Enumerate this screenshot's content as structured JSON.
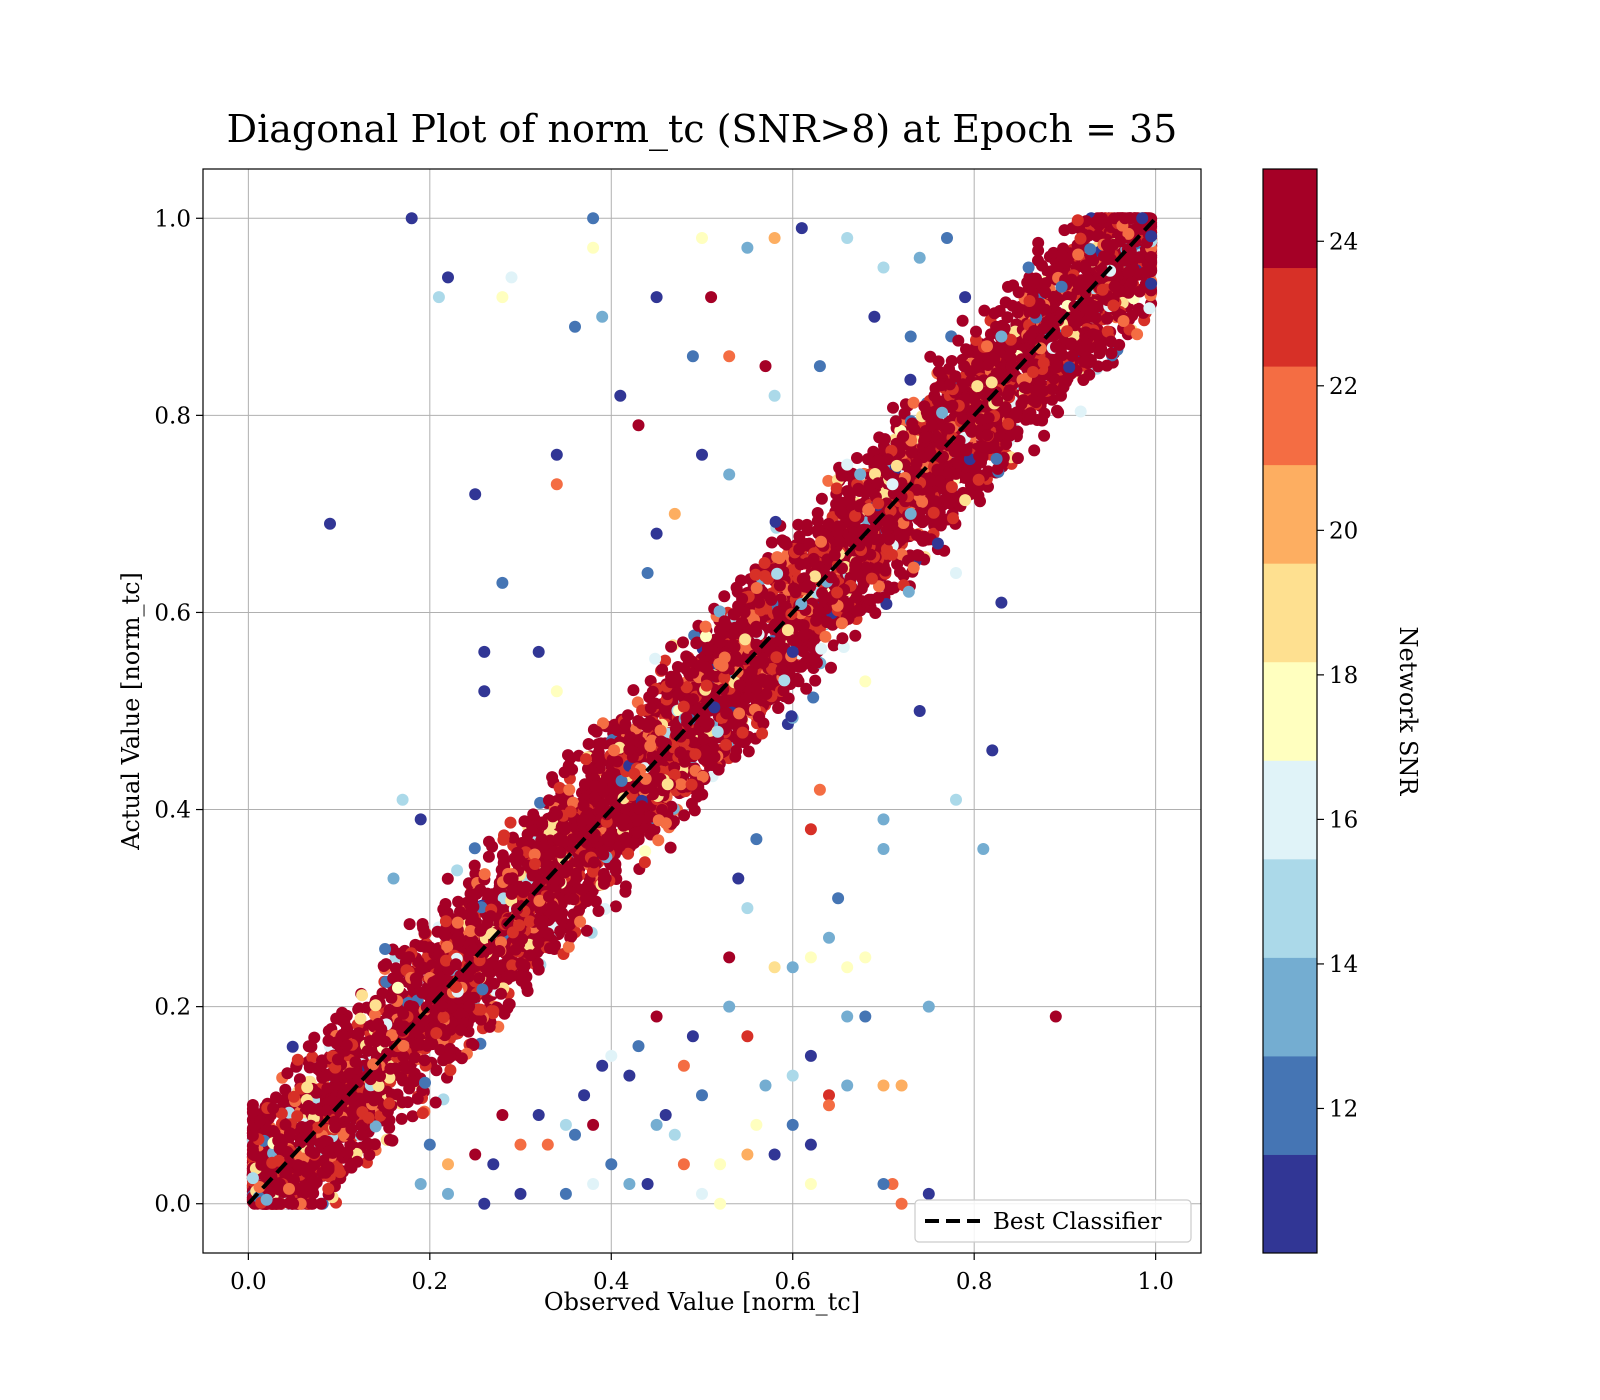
{
  "chart_data": {
    "type": "scatter",
    "title": "Diagonal Plot of norm_tc (SNR>8) at Epoch = 35",
    "xlabel": "Observed Value [norm_tc]",
    "ylabel": "Actual Value [norm_tc]",
    "xlim": [
      -0.05,
      1.05
    ],
    "ylim": [
      -0.05,
      1.05
    ],
    "xticks": [
      "0.0",
      "0.2",
      "0.4",
      "0.6",
      "0.8",
      "1.0"
    ],
    "yticks": [
      "0.0",
      "0.2",
      "0.4",
      "0.6",
      "0.8",
      "1.0"
    ],
    "grid": true,
    "legend": {
      "position": "lower-right",
      "entries": [
        "Best Classifier"
      ]
    },
    "reference_line": {
      "name": "Best Classifier",
      "style": "dashed",
      "color": "#000000",
      "x": [
        0,
        1
      ],
      "y": [
        0,
        1
      ]
    },
    "colorbar": {
      "label": "Network SNR",
      "range": [
        10,
        25
      ],
      "ticks": [
        "12",
        "14",
        "16",
        "18",
        "20",
        "22",
        "24"
      ],
      "colors": [
        "#313695",
        "#4575b4",
        "#74add1",
        "#abd9e9",
        "#e0f3f8",
        "#ffffbf",
        "#fee090",
        "#fdae61",
        "#f46d43",
        "#d73027",
        "#a50026"
      ]
    },
    "series": [
      {
        "description": "dense diagonal band of high-SNR points",
        "band_center": "y = x",
        "band_halfwidth": 0.12,
        "dominant_color": "#a50026"
      },
      {
        "description": "scattered outliers, mostly low-SNR",
        "points": [
          [
            0.18,
            1.0,
            10
          ],
          [
            0.22,
            0.94,
            10
          ],
          [
            0.21,
            0.92,
            15
          ],
          [
            0.29,
            0.94,
            16
          ],
          [
            0.28,
            0.92,
            18
          ],
          [
            0.38,
            1.0,
            12
          ],
          [
            0.38,
            0.97,
            18
          ],
          [
            0.36,
            0.89,
            12
          ],
          [
            0.39,
            0.9,
            14
          ],
          [
            0.09,
            0.69,
            10
          ],
          [
            0.25,
            0.72,
            10
          ],
          [
            0.34,
            0.76,
            10
          ],
          [
            0.34,
            0.73,
            22
          ],
          [
            0.41,
            0.82,
            10
          ],
          [
            0.43,
            0.79,
            24
          ],
          [
            0.28,
            0.63,
            12
          ],
          [
            0.26,
            0.56,
            10
          ],
          [
            0.26,
            0.52,
            10
          ],
          [
            0.32,
            0.56,
            10
          ],
          [
            0.34,
            0.52,
            18
          ],
          [
            0.19,
            0.39,
            10
          ],
          [
            0.17,
            0.41,
            15
          ],
          [
            0.16,
            0.33,
            14
          ],
          [
            0.45,
            0.92,
            11
          ],
          [
            0.5,
            0.98,
            18
          ],
          [
            0.51,
            0.92,
            24
          ],
          [
            0.55,
            0.97,
            14
          ],
          [
            0.58,
            0.98,
            20
          ],
          [
            0.61,
            0.99,
            10
          ],
          [
            0.66,
            0.98,
            15
          ],
          [
            0.49,
            0.86,
            12
          ],
          [
            0.53,
            0.86,
            22
          ],
          [
            0.57,
            0.85,
            24
          ],
          [
            0.58,
            0.82,
            15
          ],
          [
            0.63,
            0.85,
            12
          ],
          [
            0.66,
            0.75,
            16
          ],
          [
            0.7,
            0.95,
            15
          ],
          [
            0.74,
            0.96,
            13
          ],
          [
            0.69,
            0.9,
            11
          ],
          [
            0.73,
            0.88,
            12
          ],
          [
            0.5,
            0.76,
            10
          ],
          [
            0.53,
            0.74,
            13
          ],
          [
            0.47,
            0.7,
            20
          ],
          [
            0.45,
            0.68,
            10
          ],
          [
            0.44,
            0.64,
            12
          ],
          [
            0.83,
            0.61,
            10
          ],
          [
            0.78,
            0.64,
            16
          ],
          [
            0.74,
            0.5,
            10
          ],
          [
            0.82,
            0.46,
            10
          ],
          [
            0.78,
            0.41,
            15
          ],
          [
            0.81,
            0.36,
            14
          ],
          [
            0.7,
            0.39,
            14
          ],
          [
            0.7,
            0.36,
            14
          ],
          [
            0.63,
            0.42,
            21
          ],
          [
            0.62,
            0.38,
            23
          ],
          [
            0.56,
            0.37,
            12
          ],
          [
            0.54,
            0.33,
            11
          ],
          [
            0.55,
            0.3,
            15
          ],
          [
            0.65,
            0.31,
            12
          ],
          [
            0.64,
            0.27,
            13
          ],
          [
            0.53,
            0.25,
            24
          ],
          [
            0.58,
            0.24,
            19
          ],
          [
            0.6,
            0.24,
            14
          ],
          [
            0.62,
            0.25,
            17
          ],
          [
            0.66,
            0.24,
            17
          ],
          [
            0.68,
            0.25,
            17
          ],
          [
            0.75,
            0.2,
            14
          ],
          [
            0.89,
            0.19,
            24
          ],
          [
            0.66,
            0.19,
            14
          ],
          [
            0.68,
            0.19,
            12
          ],
          [
            0.45,
            0.19,
            24
          ],
          [
            0.49,
            0.17,
            10
          ],
          [
            0.55,
            0.17,
            23
          ],
          [
            0.53,
            0.2,
            13
          ],
          [
            0.62,
            0.15,
            10
          ],
          [
            0.6,
            0.13,
            15
          ],
          [
            0.57,
            0.12,
            14
          ],
          [
            0.64,
            0.11,
            23
          ],
          [
            0.64,
            0.1,
            22
          ],
          [
            0.7,
            0.12,
            20
          ],
          [
            0.72,
            0.12,
            20
          ],
          [
            0.48,
            0.14,
            21
          ],
          [
            0.5,
            0.11,
            12
          ],
          [
            0.46,
            0.09,
            10
          ],
          [
            0.42,
            0.13,
            10
          ],
          [
            0.39,
            0.14,
            11
          ],
          [
            0.37,
            0.11,
            10
          ],
          [
            0.38,
            0.08,
            24
          ],
          [
            0.36,
            0.07,
            12
          ],
          [
            0.32,
            0.09,
            10
          ],
          [
            0.3,
            0.06,
            21
          ],
          [
            0.28,
            0.09,
            24
          ],
          [
            0.25,
            0.05,
            24
          ],
          [
            0.27,
            0.04,
            10
          ],
          [
            0.22,
            0.04,
            20
          ],
          [
            0.2,
            0.06,
            12
          ],
          [
            0.19,
            0.02,
            14
          ],
          [
            0.22,
            0.01,
            14
          ],
          [
            0.26,
            0.0,
            10
          ],
          [
            0.3,
            0.01,
            10
          ],
          [
            0.35,
            0.01,
            12
          ],
          [
            0.38,
            0.02,
            16
          ],
          [
            0.4,
            0.04,
            12
          ],
          [
            0.42,
            0.02,
            14
          ],
          [
            0.44,
            0.02,
            10
          ],
          [
            0.48,
            0.04,
            21
          ],
          [
            0.5,
            0.01,
            16
          ],
          [
            0.52,
            0.0,
            18
          ],
          [
            0.55,
            0.05,
            20
          ],
          [
            0.58,
            0.05,
            10
          ],
          [
            0.6,
            0.08,
            12
          ],
          [
            0.62,
            0.06,
            10
          ],
          [
            0.56,
            0.08,
            17
          ],
          [
            0.52,
            0.04,
            18
          ],
          [
            0.47,
            0.07,
            15
          ],
          [
            0.45,
            0.08,
            14
          ],
          [
            0.71,
            0.02,
            21
          ],
          [
            0.7,
            0.02,
            12
          ],
          [
            0.72,
            0.0,
            22
          ],
          [
            0.75,
            0.01,
            10
          ],
          [
            0.62,
            0.02,
            17
          ],
          [
            0.66,
            0.12,
            14
          ],
          [
            0.77,
            0.98,
            12
          ],
          [
            0.79,
            0.92,
            10
          ],
          [
            0.83,
            0.88,
            13
          ],
          [
            0.86,
            0.95,
            12
          ],
          [
            0.35,
            0.08,
            15
          ],
          [
            0.33,
            0.06,
            22
          ],
          [
            0.43,
            0.16,
            12
          ],
          [
            0.4,
            0.15,
            16
          ],
          [
            0.73,
            0.7,
            13
          ],
          [
            0.71,
            0.73,
            16
          ],
          [
            0.76,
            0.67,
            11
          ],
          [
            0.6,
            0.56,
            10
          ],
          [
            0.68,
            0.53,
            18
          ]
        ]
      }
    ]
  }
}
